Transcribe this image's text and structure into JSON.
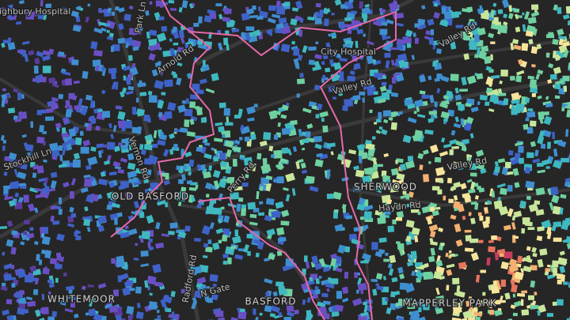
{
  "labels": [
    "Highbury Hospital",
    "Park Ln",
    "Arnold Rd",
    "City Hospital",
    "Valley Rd",
    "Valley Rd",
    "Valley Rd",
    "Stockhill Ln",
    "Vernon Rd",
    "OLD BASFORD",
    "Perry Rd",
    "Haydn Rd",
    "SHERWOOD",
    "Radford Rd",
    "N Gate",
    "BASFORD",
    "WHITEMOOR",
    "MAPPERLEY PARK"
  ]
}
